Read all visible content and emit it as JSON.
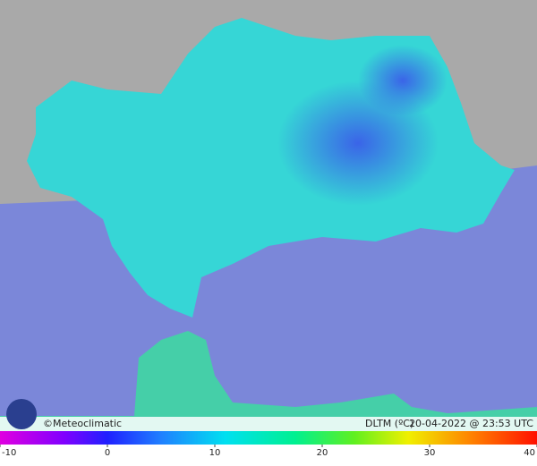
{
  "map": {
    "credit": "©Meteoclimatic",
    "variable": "DLTM (ºC)",
    "timestamp": "20-04-2022 @ 23:53 UTC",
    "colorbar": {
      "lim": [
        -10,
        40
      ],
      "ticks": [
        -10,
        0,
        10,
        20,
        30,
        40
      ]
    }
  }
}
